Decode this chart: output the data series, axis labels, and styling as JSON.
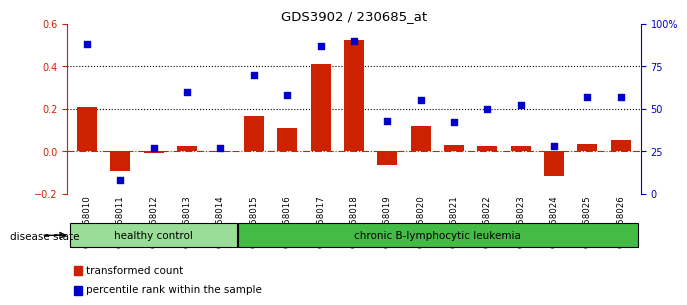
{
  "title": "GDS3902 / 230685_at",
  "samples": [
    "GSM658010",
    "GSM658011",
    "GSM658012",
    "GSM658013",
    "GSM658014",
    "GSM658015",
    "GSM658016",
    "GSM658017",
    "GSM658018",
    "GSM658019",
    "GSM658020",
    "GSM658021",
    "GSM658022",
    "GSM658023",
    "GSM658024",
    "GSM658025",
    "GSM658026"
  ],
  "bar_values": [
    0.21,
    -0.095,
    -0.01,
    0.025,
    -0.005,
    0.165,
    0.11,
    0.41,
    0.525,
    -0.065,
    0.12,
    0.03,
    0.025,
    0.025,
    -0.115,
    0.035,
    0.055
  ],
  "dot_values": [
    88,
    8,
    27,
    60,
    27,
    70,
    58,
    87,
    90,
    43,
    55,
    42,
    50,
    52,
    28,
    57,
    57
  ],
  "bar_color": "#cc2200",
  "dot_color": "#0000cc",
  "groups": [
    {
      "label": "healthy control",
      "start": 0,
      "end": 4,
      "color": "#99dd99"
    },
    {
      "label": "chronic B-lymphocytic leukemia",
      "start": 5,
      "end": 16,
      "color": "#44bb44"
    }
  ],
  "ylim_left": [
    -0.2,
    0.6
  ],
  "ylim_right": [
    0,
    100
  ],
  "yticks_left": [
    -0.2,
    0.0,
    0.2,
    0.4,
    0.6
  ],
  "yticks_right": [
    0,
    25,
    50,
    75,
    100
  ],
  "ytick_labels_right": [
    "0",
    "25",
    "50",
    "75",
    "100%"
  ],
  "hlines": [
    0.2,
    0.4
  ],
  "background_color": "#ffffff",
  "disease_state_label": "disease state",
  "legend_bar": "transformed count",
  "legend_dot": "percentile rank within the sample"
}
